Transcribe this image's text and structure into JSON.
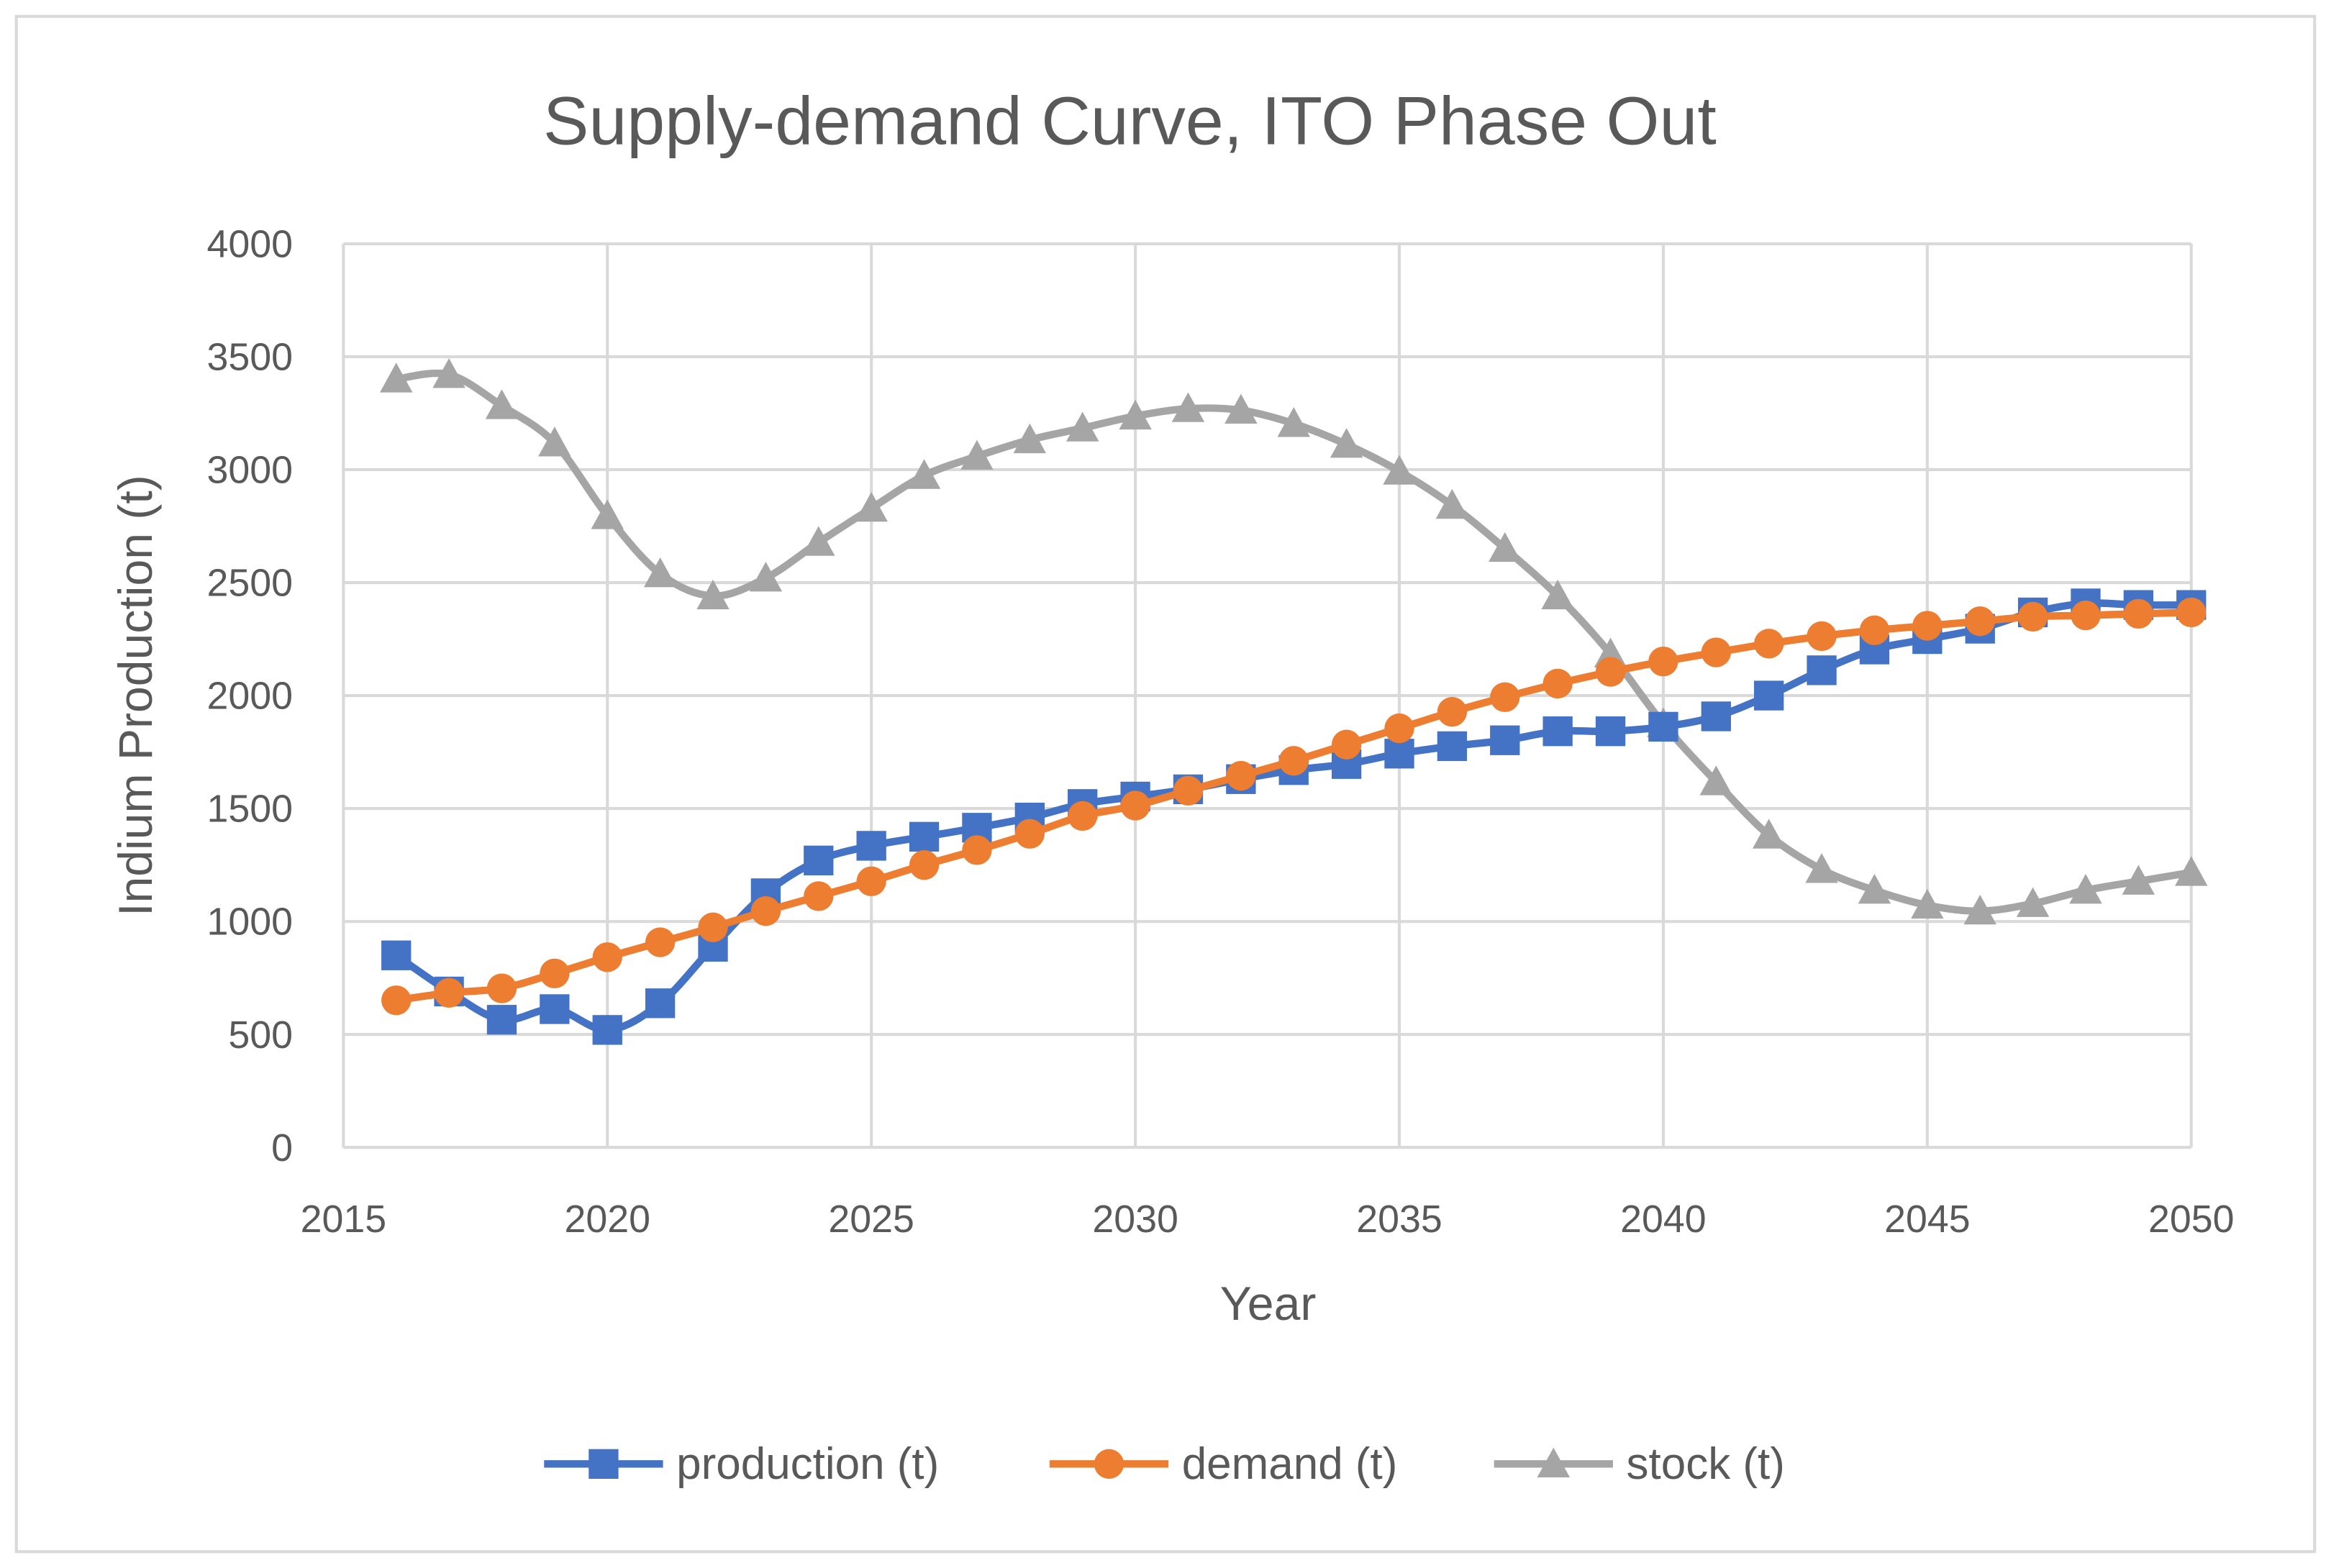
{
  "chart_data": {
    "type": "line",
    "title": "Supply-demand Curve, ITO Phase Out",
    "xlabel": "Year",
    "ylabel": "Indium Production (t)",
    "xlim": [
      2015,
      2050
    ],
    "ylim": [
      0,
      4000
    ],
    "x_ticks": [
      2015,
      2020,
      2025,
      2030,
      2035,
      2040,
      2045,
      2050
    ],
    "y_ticks": [
      0,
      500,
      1000,
      1500,
      2000,
      2500,
      3000,
      3500,
      4000
    ],
    "grid": true,
    "legend_position": "bottom",
    "x": [
      2016,
      2017,
      2018,
      2019,
      2020,
      2021,
      2022,
      2023,
      2024,
      2025,
      2026,
      2027,
      2028,
      2029,
      2030,
      2031,
      2032,
      2033,
      2034,
      2035,
      2036,
      2037,
      2038,
      2039,
      2040,
      2041,
      2042,
      2043,
      2044,
      2045,
      2046,
      2047,
      2048,
      2049,
      2050
    ],
    "series": [
      {
        "name": "production (t)",
        "color": "#4472C4",
        "marker": "square",
        "values": [
          850,
          690,
          565,
          612,
          520,
          638,
          888,
          1125,
          1270,
          1335,
          1375,
          1415,
          1460,
          1520,
          1553,
          1585,
          1630,
          1670,
          1697,
          1743,
          1776,
          1802,
          1842,
          1842,
          1862,
          1908,
          2000,
          2112,
          2204,
          2250,
          2296,
          2368,
          2408,
          2401,
          2401
        ]
      },
      {
        "name": "demand (t)",
        "color": "#ED7D31",
        "marker": "circle",
        "values": [
          651,
          684,
          704,
          770,
          842,
          908,
          974,
          1046,
          1112,
          1178,
          1250,
          1316,
          1388,
          1467,
          1513,
          1579,
          1645,
          1711,
          1783,
          1855,
          1928,
          1993,
          2053,
          2105,
          2151,
          2191,
          2230,
          2263,
          2289,
          2309,
          2329,
          2349,
          2355,
          2362,
          2368
        ]
      },
      {
        "name": "stock (t)",
        "color": "#A5A5A5",
        "marker": "triangle",
        "values": [
          3401,
          3421,
          3283,
          3118,
          2796,
          2539,
          2441,
          2520,
          2678,
          2829,
          2974,
          3059,
          3132,
          3184,
          3237,
          3270,
          3263,
          3204,
          3112,
          2993,
          2842,
          2651,
          2441,
          2184,
          1875,
          1618,
          1382,
          1230,
          1138,
          1072,
          1046,
          1079,
          1138,
          1178,
          1217
        ]
      }
    ]
  }
}
